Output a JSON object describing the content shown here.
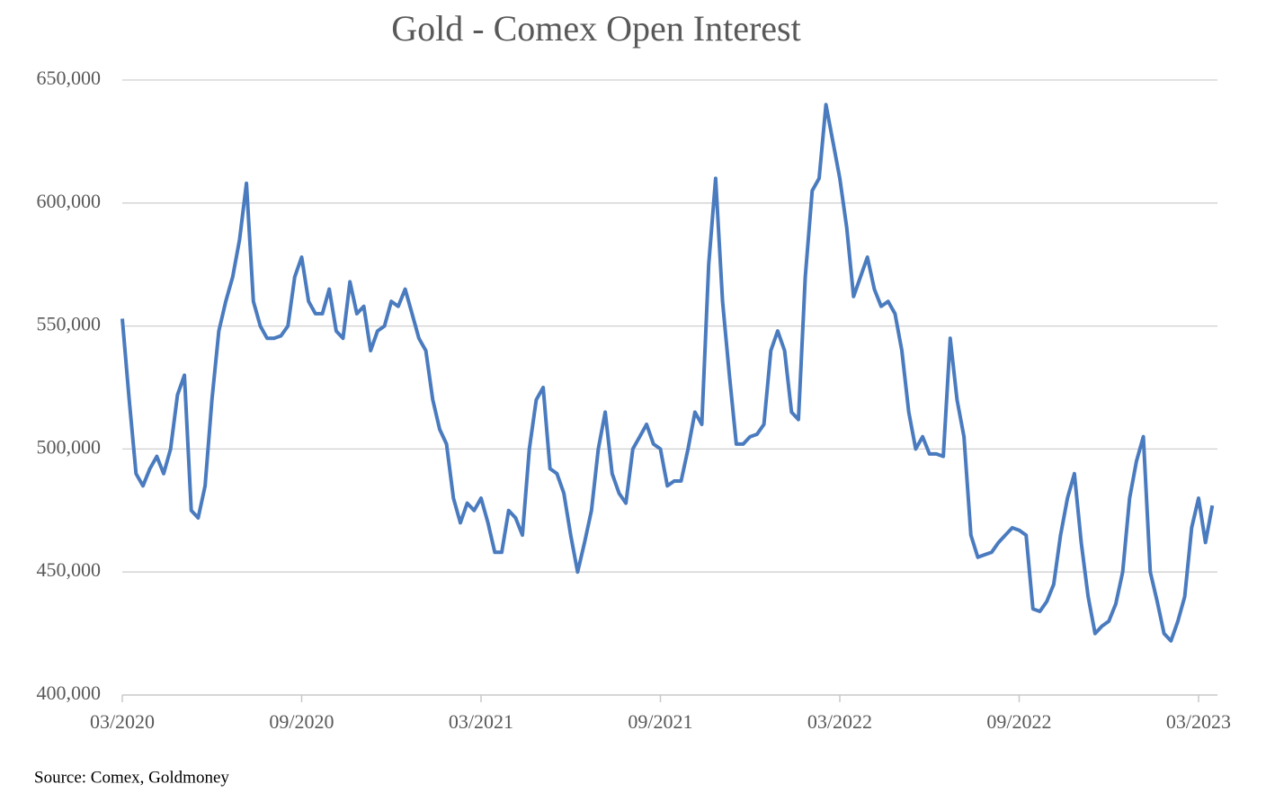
{
  "chart_data": {
    "type": "line",
    "title": "Gold - Comex Open Interest",
    "source": "Source: Comex, Goldmoney",
    "categories": [
      "03/2020",
      null,
      null,
      null,
      null,
      null,
      null,
      null,
      null,
      null,
      null,
      null,
      null,
      null,
      null,
      null,
      null,
      null,
      null,
      null,
      null,
      null,
      null,
      null,
      null,
      null,
      "09/2020",
      null,
      null,
      null,
      null,
      null,
      null,
      null,
      null,
      null,
      null,
      null,
      null,
      null,
      null,
      null,
      null,
      null,
      null,
      null,
      null,
      null,
      null,
      null,
      null,
      null,
      "03/2021",
      null,
      null,
      null,
      null,
      null,
      null,
      null,
      null,
      null,
      null,
      null,
      null,
      null,
      null,
      null,
      null,
      null,
      null,
      null,
      null,
      null,
      null,
      null,
      null,
      null,
      "09/2021",
      null,
      null,
      null,
      null,
      null,
      null,
      null,
      null,
      null,
      null,
      null,
      null,
      null,
      null,
      null,
      null,
      null,
      null,
      null,
      null,
      null,
      null,
      null,
      null,
      null,
      "03/2022",
      null,
      null,
      null,
      null,
      null,
      null,
      null,
      null,
      null,
      null,
      null,
      null,
      null,
      null,
      null,
      null,
      null,
      null,
      null,
      null,
      null,
      null,
      null,
      null,
      null,
      "09/2022",
      null,
      null,
      null,
      null,
      null,
      null,
      null,
      null,
      null,
      null,
      null,
      null,
      null,
      null,
      null,
      null,
      null,
      null,
      null,
      null,
      null,
      null,
      null,
      null,
      null,
      "03/2023",
      null,
      null
    ],
    "values": [
      553000,
      520000,
      490000,
      485000,
      492000,
      497000,
      490000,
      500000,
      522000,
      530000,
      475000,
      472000,
      485000,
      520000,
      548000,
      560000,
      570000,
      585000,
      608000,
      560000,
      550000,
      545000,
      545000,
      546000,
      550000,
      570000,
      578000,
      560000,
      555000,
      555000,
      565000,
      548000,
      545000,
      568000,
      555000,
      558000,
      540000,
      548000,
      550000,
      560000,
      558000,
      565000,
      555000,
      545000,
      540000,
      520000,
      508000,
      502000,
      480000,
      470000,
      478000,
      475000,
      480000,
      470000,
      458000,
      458000,
      475000,
      472000,
      465000,
      500000,
      520000,
      525000,
      492000,
      490000,
      482000,
      465000,
      450000,
      462000,
      475000,
      500000,
      515000,
      490000,
      482000,
      478000,
      500000,
      505000,
      510000,
      502000,
      500000,
      485000,
      487000,
      487000,
      500000,
      515000,
      510000,
      575000,
      610000,
      560000,
      530000,
      502000,
      502000,
      505000,
      506000,
      510000,
      540000,
      548000,
      540000,
      515000,
      512000,
      570000,
      605000,
      610000,
      640000,
      625000,
      610000,
      590000,
      562000,
      570000,
      578000,
      565000,
      558000,
      560000,
      555000,
      540000,
      515000,
      500000,
      505000,
      498000,
      498000,
      497000,
      545000,
      520000,
      505000,
      465000,
      456000,
      457000,
      458000,
      462000,
      465000,
      468000,
      467000,
      465000,
      435000,
      434000,
      438000,
      445000,
      465000,
      480000,
      490000,
      462000,
      440000,
      425000,
      428000,
      430000,
      437000,
      450000,
      480000,
      495000,
      505000,
      450000,
      438000,
      425000,
      422000,
      430000,
      440000,
      468000,
      480000,
      462000,
      477000
    ],
    "color": "#4a7bbf",
    "ylim": [
      400000,
      650000
    ],
    "yticks": [
      {
        "value": 400000,
        "label": "400,000"
      },
      {
        "value": 450000,
        "label": "450,000"
      },
      {
        "value": 500000,
        "label": "500,000"
      },
      {
        "value": 550000,
        "label": "550,000"
      },
      {
        "value": 600000,
        "label": "600,000"
      },
      {
        "value": 650000,
        "label": "650,000"
      }
    ],
    "grid": true
  }
}
